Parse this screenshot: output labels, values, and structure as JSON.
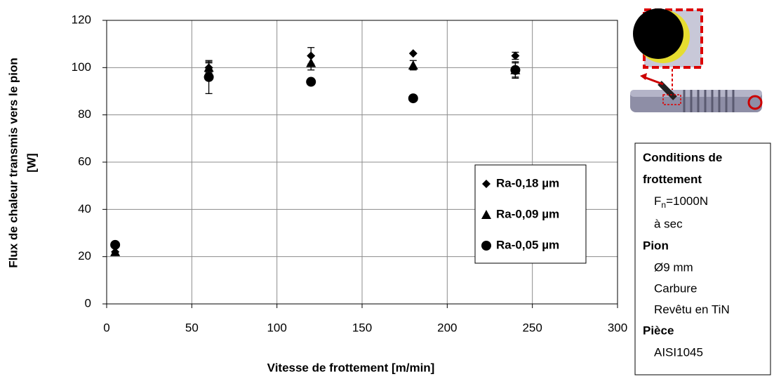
{
  "chart_data": {
    "type": "scatter",
    "x_label": "Vitesse de frottement [m/min]",
    "y_label": [
      "Flux de chaleur  transmis vers le pion",
      "[W]"
    ],
    "xlim": [
      0,
      300
    ],
    "xticks": [
      0,
      50,
      100,
      150,
      200,
      250,
      300
    ],
    "ylim": [
      0,
      120
    ],
    "yticks": [
      0,
      20,
      40,
      60,
      80,
      100,
      120
    ],
    "grid": true,
    "legend": "right",
    "series": [
      {
        "name": "Ra-0,18 µm",
        "color": "#000000",
        "marker": "diamond",
        "x": [
          5,
          60,
          120,
          180,
          240
        ],
        "values": [
          22,
          100,
          105,
          106,
          105
        ],
        "errors": [
          null,
          2.5,
          3.5,
          null,
          1.5
        ]
      },
      {
        "name": "Ra-0,09 µm",
        "color": "#000000",
        "marker": "triangle",
        "x": [
          5,
          60,
          120,
          180,
          240
        ],
        "values": [
          22,
          100,
          102,
          101,
          99
        ],
        "errors": [
          null,
          2,
          3,
          2,
          3
        ]
      },
      {
        "name": "Ra-0,05 µm",
        "color": "#000000",
        "marker": "circle",
        "x": [
          5,
          60,
          120,
          180,
          240
        ],
        "values": [
          25,
          96,
          94,
          87,
          99
        ],
        "errors": [
          null,
          7,
          null,
          null,
          3.5
        ]
      }
    ]
  },
  "conditions": {
    "title": "Conditions de frottement",
    "fn": {
      "base": "F",
      "sub": "n",
      "rest": "=1000N"
    },
    "lines1": [
      "à sec"
    ],
    "pion": "Pion",
    "pion_lines": [
      "Ø9 mm",
      "Carbure",
      "Revêtu en TiN"
    ],
    "piece": "Pièce",
    "piece_lines": [
      "AISI1045"
    ]
  }
}
